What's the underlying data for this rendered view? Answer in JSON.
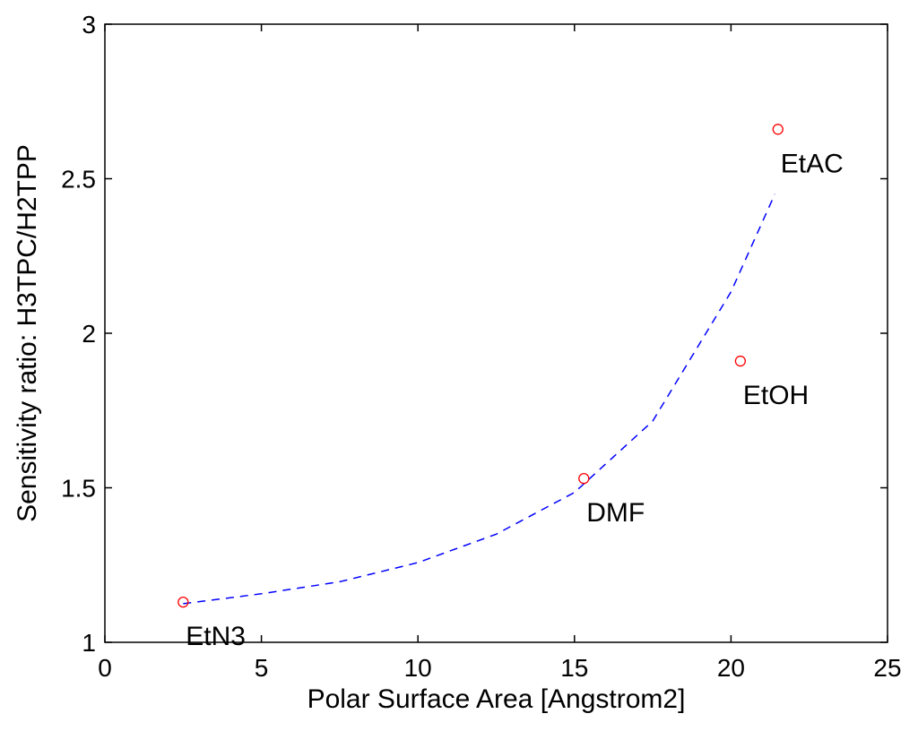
{
  "chart_data": {
    "type": "scatter",
    "title": "",
    "xlabel": "Polar Surface Area [Angstrom2]",
    "ylabel": "Sensitivity ratio: H3TPC/H2TPP",
    "xlim": [
      0,
      25
    ],
    "ylim": [
      1,
      3
    ],
    "xticks": [
      0,
      5,
      10,
      15,
      20,
      25
    ],
    "yticks": [
      1,
      1.5,
      2,
      2.5,
      3
    ],
    "xtick_labels": [
      "0",
      "5",
      "10",
      "15",
      "20",
      "25"
    ],
    "ytick_labels": [
      "1",
      "1.5",
      "2",
      "2.5",
      "3"
    ],
    "grid": false,
    "series": [
      {
        "kind": "scatter",
        "marker": "open-circle",
        "color": "#ff0000",
        "points": [
          {
            "label": "EtN3",
            "x": 2.5,
            "y": 1.13
          },
          {
            "label": "DMF",
            "x": 15.3,
            "y": 1.53
          },
          {
            "label": "EtOH",
            "x": 20.3,
            "y": 1.91
          },
          {
            "label": "EtAC",
            "x": 21.5,
            "y": 2.66
          }
        ]
      },
      {
        "kind": "fit-line",
        "style": "dashed",
        "color": "#0000ff",
        "x": [
          2.5,
          5,
          7.5,
          10,
          12.5,
          15,
          17.5,
          20,
          21.4
        ],
        "y": [
          1.125,
          1.157,
          1.196,
          1.258,
          1.35,
          1.485,
          1.716,
          2.134,
          2.45
        ]
      }
    ]
  }
}
